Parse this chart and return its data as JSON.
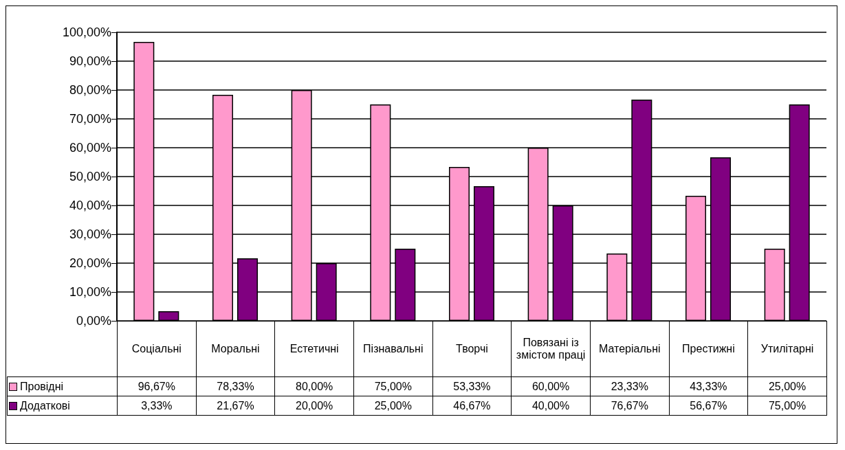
{
  "chart_data": {
    "type": "bar",
    "categories": [
      "Соціальні",
      "Моральні",
      "Естетичні",
      "Пізнавальні",
      "Творчі",
      "Повязані із змістом праці",
      "Матеріальні",
      "Престижні",
      "Утилітарні"
    ],
    "series": [
      {
        "name": "Провідні",
        "color": "#ff99cc",
        "values": [
          96.67,
          78.33,
          80.0,
          75.0,
          53.33,
          60.0,
          23.33,
          43.33,
          25.0
        ],
        "value_labels": [
          "96,67%",
          "78,33%",
          "80,00%",
          "75,00%",
          "53,33%",
          "60,00%",
          "23,33%",
          "43,33%",
          "25,00%"
        ]
      },
      {
        "name": "Додаткові",
        "color": "#800080",
        "values": [
          3.33,
          21.67,
          20.0,
          25.0,
          46.67,
          40.0,
          76.67,
          56.67,
          75.0
        ],
        "value_labels": [
          "3,33%",
          "21,67%",
          "20,00%",
          "25,00%",
          "46,67%",
          "40,00%",
          "76,67%",
          "56,67%",
          "75,00%"
        ]
      }
    ],
    "ylim": [
      0,
      100
    ],
    "yticks": [
      {
        "value": 0,
        "label": "0,00%"
      },
      {
        "value": 10,
        "label": "10,00%"
      },
      {
        "value": 20,
        "label": "20,00%"
      },
      {
        "value": 30,
        "label": "30,00%"
      },
      {
        "value": 40,
        "label": "40,00%"
      },
      {
        "value": 50,
        "label": "50,00%"
      },
      {
        "value": 60,
        "label": "60,00%"
      },
      {
        "value": 70,
        "label": "70,00%"
      },
      {
        "value": 80,
        "label": "80,00%"
      },
      {
        "value": 90,
        "label": "90,00%"
      },
      {
        "value": 100,
        "label": "100,00%"
      }
    ],
    "grid": "y",
    "legend": "bottom left"
  }
}
